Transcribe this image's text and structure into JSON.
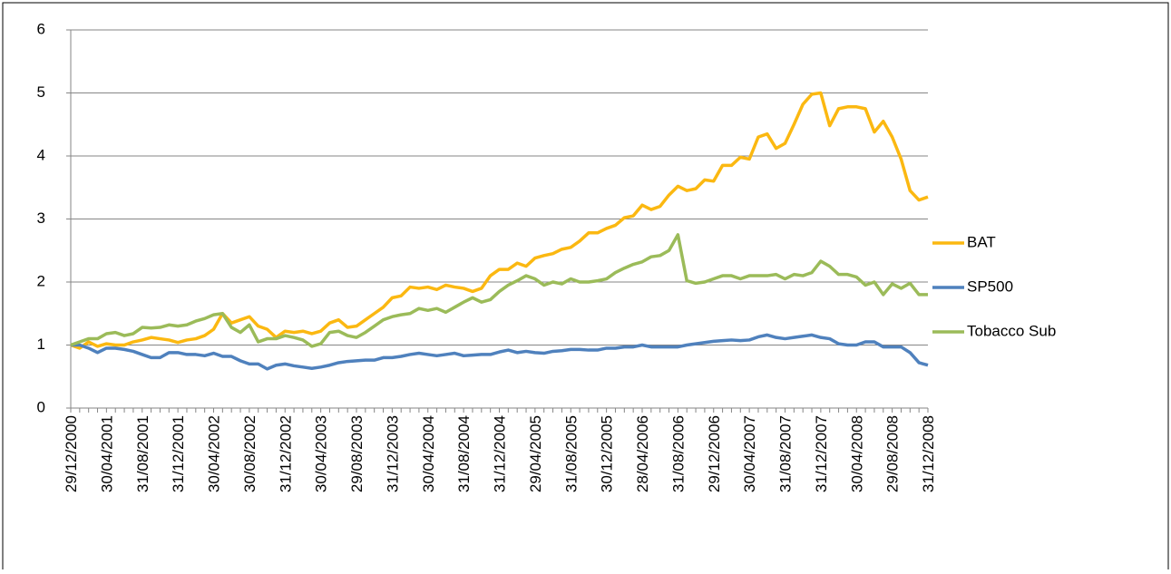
{
  "chart_data": {
    "type": "line",
    "categories": [
      "29/12/2000",
      null,
      null,
      null,
      "30/04/2001",
      null,
      null,
      null,
      "31/08/2001",
      null,
      null,
      null,
      "31/12/2001",
      null,
      null,
      null,
      "30/04/2002",
      null,
      null,
      null,
      "30/08/2002",
      null,
      null,
      null,
      "31/12/2002",
      null,
      null,
      null,
      "30/04/2003",
      null,
      null,
      null,
      "29/08/2003",
      null,
      null,
      null,
      "31/12/2003",
      null,
      null,
      null,
      "30/04/2004",
      null,
      null,
      null,
      "31/08/2004",
      null,
      null,
      null,
      "31/12/2004",
      null,
      null,
      null,
      "29/04/2005",
      null,
      null,
      null,
      "31/08/2005",
      null,
      null,
      null,
      "30/12/2005",
      null,
      null,
      null,
      "28/04/2006",
      null,
      null,
      null,
      "31/08/2006",
      null,
      null,
      null,
      "29/12/2006",
      null,
      null,
      null,
      "30/04/2007",
      null,
      null,
      null,
      "31/08/2007",
      null,
      null,
      null,
      "31/12/2007",
      null,
      null,
      null,
      "30/04/2008",
      null,
      null,
      null,
      "29/08/2008",
      null,
      null,
      null,
      "31/12/2008"
    ],
    "series": [
      {
        "name": "BAT",
        "color": "#fbb811",
        "values": [
          1.0,
          0.95,
          1.05,
          0.98,
          1.02,
          1.0,
          1.0,
          1.05,
          1.08,
          1.12,
          1.1,
          1.08,
          1.04,
          1.08,
          1.1,
          1.15,
          1.25,
          1.5,
          1.35,
          1.4,
          1.45,
          1.3,
          1.25,
          1.12,
          1.22,
          1.2,
          1.22,
          1.18,
          1.22,
          1.35,
          1.4,
          1.28,
          1.3,
          1.4,
          1.5,
          1.6,
          1.75,
          1.78,
          1.92,
          1.9,
          1.92,
          1.88,
          1.95,
          1.92,
          1.9,
          1.85,
          1.9,
          2.1,
          2.2,
          2.2,
          2.3,
          2.25,
          2.38,
          2.42,
          2.45,
          2.52,
          2.55,
          2.65,
          2.78,
          2.78,
          2.85,
          2.9,
          3.02,
          3.05,
          3.22,
          3.15,
          3.2,
          3.38,
          3.52,
          3.45,
          3.48,
          3.62,
          3.6,
          3.85,
          3.85,
          3.98,
          3.95,
          4.3,
          4.35,
          4.12,
          4.2,
          4.5,
          4.82,
          4.98,
          5.0,
          4.48,
          4.75,
          4.78,
          4.78,
          4.75,
          4.38,
          4.55,
          4.3,
          3.95,
          3.45,
          3.3,
          3.35
        ]
      },
      {
        "name": "SP500",
        "color": "#4f81bd",
        "values": [
          1.0,
          1.0,
          0.95,
          0.88,
          0.95,
          0.95,
          0.93,
          0.9,
          0.85,
          0.8,
          0.8,
          0.88,
          0.88,
          0.85,
          0.85,
          0.83,
          0.87,
          0.82,
          0.82,
          0.75,
          0.7,
          0.7,
          0.62,
          0.68,
          0.7,
          0.67,
          0.65,
          0.63,
          0.65,
          0.68,
          0.72,
          0.74,
          0.75,
          0.76,
          0.76,
          0.8,
          0.8,
          0.82,
          0.85,
          0.87,
          0.85,
          0.83,
          0.85,
          0.87,
          0.83,
          0.84,
          0.85,
          0.85,
          0.89,
          0.92,
          0.88,
          0.9,
          0.88,
          0.87,
          0.9,
          0.91,
          0.93,
          0.93,
          0.92,
          0.92,
          0.95,
          0.95,
          0.97,
          0.97,
          1.0,
          0.97,
          0.97,
          0.97,
          0.97,
          1.0,
          1.02,
          1.04,
          1.06,
          1.07,
          1.08,
          1.07,
          1.08,
          1.13,
          1.16,
          1.12,
          1.1,
          1.12,
          1.14,
          1.16,
          1.12,
          1.1,
          1.02,
          1.0,
          1.0,
          1.05,
          1.05,
          0.97,
          0.97,
          0.97,
          0.88,
          0.72,
          0.68
        ]
      },
      {
        "name": "Tobacco Sub",
        "color": "#9bbb59",
        "values": [
          1.0,
          1.05,
          1.1,
          1.1,
          1.18,
          1.2,
          1.15,
          1.18,
          1.28,
          1.27,
          1.28,
          1.32,
          1.3,
          1.32,
          1.38,
          1.42,
          1.48,
          1.5,
          1.28,
          1.2,
          1.32,
          1.05,
          1.1,
          1.1,
          1.15,
          1.12,
          1.08,
          0.98,
          1.02,
          1.2,
          1.22,
          1.15,
          1.12,
          1.2,
          1.3,
          1.4,
          1.45,
          1.48,
          1.5,
          1.58,
          1.55,
          1.58,
          1.52,
          1.6,
          1.68,
          1.75,
          1.68,
          1.72,
          1.85,
          1.95,
          2.02,
          2.1,
          2.05,
          1.95,
          2.0,
          1.97,
          2.05,
          2.0,
          2.0,
          2.02,
          2.05,
          2.15,
          2.22,
          2.28,
          2.32,
          2.4,
          2.42,
          2.5,
          2.75,
          2.02,
          1.98,
          2.0,
          2.05,
          2.1,
          2.1,
          2.05,
          2.1,
          2.1,
          2.1,
          2.12,
          2.05,
          2.12,
          2.1,
          2.15,
          2.33,
          2.25,
          2.12,
          2.12,
          2.08,
          1.95,
          2.0,
          1.8,
          1.97,
          1.9,
          1.98,
          1.8,
          1.8
        ]
      }
    ],
    "ylim": [
      0,
      6
    ],
    "yticks": [
      0,
      1,
      2,
      3,
      4,
      5,
      6
    ],
    "grid": true,
    "legend": "right"
  }
}
